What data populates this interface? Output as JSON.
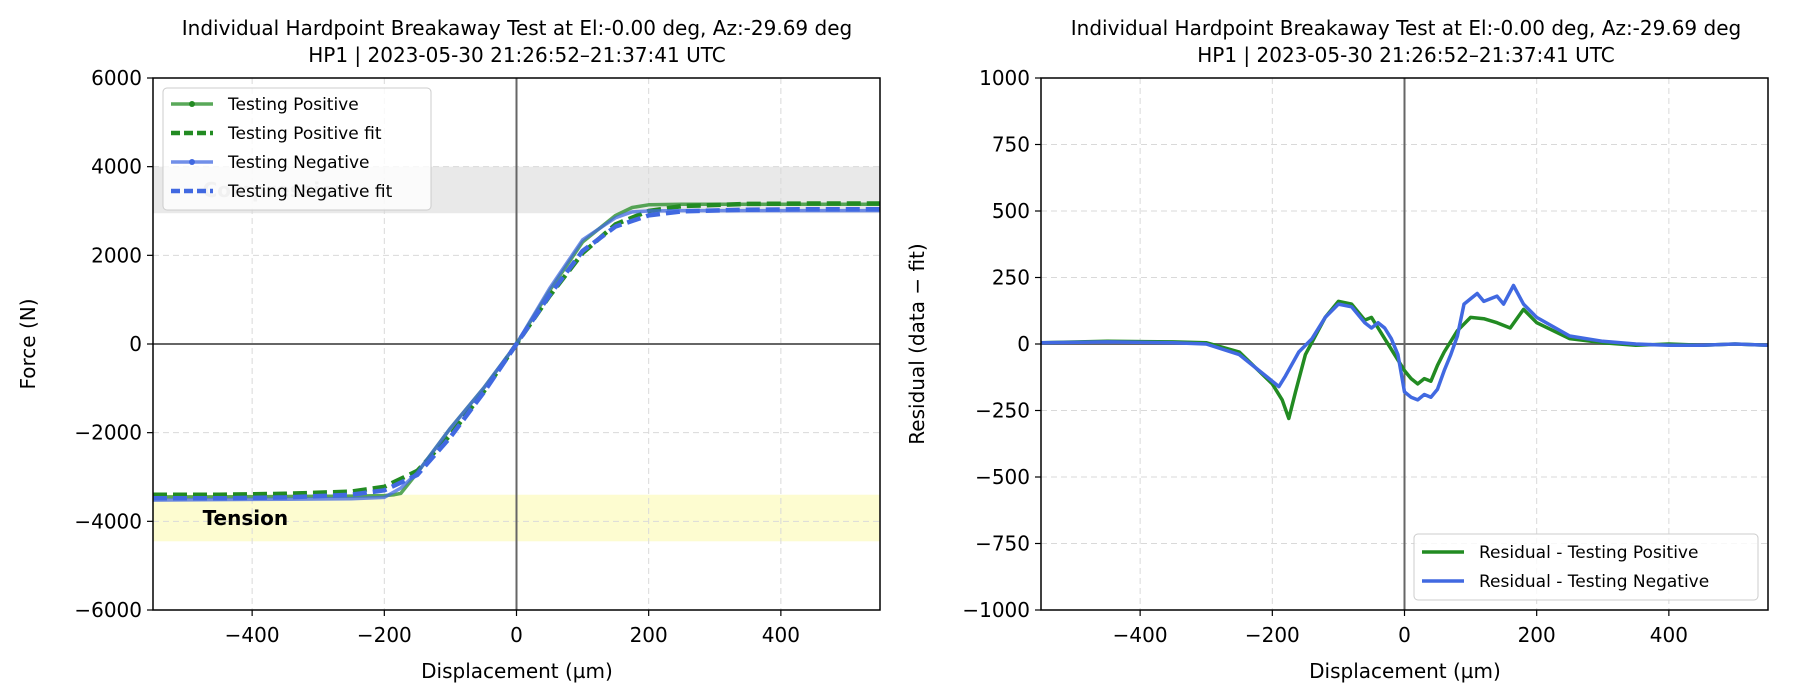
{
  "chart_data": [
    {
      "type": "line",
      "title": "Individual Hardpoint Breakaway Test at El:-0.00 deg, Az:-29.69 deg",
      "subtitle": "HP1 | 2023-05-30 21:26:52–21:37:41 UTC",
      "xlabel": "Displacement (µm)",
      "ylabel": "Force (N)",
      "xlim": [
        -550,
        550
      ],
      "ylim": [
        -6000,
        6000
      ],
      "xticks": [
        -400,
        -200,
        0,
        200,
        400
      ],
      "xtick_labels": [
        "−400",
        "−200",
        "0",
        "200",
        "400"
      ],
      "yticks": [
        -6000,
        -4000,
        -2000,
        0,
        2000,
        4000,
        6000
      ],
      "ytick_labels": [
        "−6000",
        "−4000",
        "−2000",
        "0",
        "2000",
        "4000",
        "6000"
      ],
      "grid": true,
      "legend_position": "upper-left",
      "bands": [
        {
          "label": "Compression",
          "y": [
            2950,
            4000
          ],
          "color": "#e9e9e9"
        },
        {
          "label": "Tension",
          "y": [
            -4450,
            -3400
          ],
          "color": "#fdfcd0"
        }
      ],
      "series": [
        {
          "name": "Testing Positive",
          "color": "#228b22",
          "style": "solid-marker",
          "x": [
            -550,
            -450,
            -350,
            -250,
            -200,
            -185,
            -175,
            -150,
            -100,
            -50,
            0,
            50,
            100,
            150,
            175,
            200,
            250,
            350,
            450,
            550
          ],
          "y": [
            -3450,
            -3450,
            -3440,
            -3430,
            -3420,
            -3400,
            -3370,
            -2900,
            -1900,
            -1000,
            0,
            1200,
            2300,
            2900,
            3080,
            3140,
            3150,
            3150,
            3150,
            3150
          ]
        },
        {
          "name": "Testing Positive fit",
          "color": "#228b22",
          "style": "dash",
          "x": [
            -550,
            -450,
            -350,
            -250,
            -200,
            -150,
            -100,
            -50,
            0,
            50,
            100,
            150,
            200,
            250,
            350,
            450,
            550
          ],
          "y": [
            -3400,
            -3400,
            -3380,
            -3330,
            -3220,
            -2860,
            -2050,
            -1080,
            0,
            1080,
            2050,
            2700,
            3000,
            3110,
            3160,
            3170,
            3170
          ]
        },
        {
          "name": "Testing Negative",
          "color": "#4169e1",
          "style": "solid-marker",
          "x": [
            -550,
            -450,
            -350,
            -250,
            -200,
            -175,
            -150,
            -100,
            -50,
            0,
            50,
            100,
            150,
            175,
            200,
            250,
            350,
            450,
            550
          ],
          "y": [
            -3520,
            -3510,
            -3500,
            -3490,
            -3460,
            -3250,
            -2900,
            -1900,
            -1000,
            0,
            1250,
            2350,
            2850,
            2980,
            3000,
            3010,
            3010,
            3010,
            3010
          ]
        },
        {
          "name": "Testing Negative fit",
          "color": "#4169e1",
          "style": "dash",
          "x": [
            -550,
            -450,
            -350,
            -250,
            -200,
            -150,
            -100,
            -50,
            0,
            50,
            100,
            150,
            200,
            250,
            350,
            450,
            550
          ],
          "y": [
            -3480,
            -3480,
            -3460,
            -3400,
            -3300,
            -2950,
            -2100,
            -1100,
            0,
            1100,
            2100,
            2650,
            2900,
            2990,
            3030,
            3040,
            3040
          ]
        }
      ]
    },
    {
      "type": "line",
      "title": "Individual Hardpoint Breakaway Test at El:-0.00 deg, Az:-29.69 deg",
      "subtitle": "HP1 | 2023-05-30 21:26:52–21:37:41 UTC",
      "xlabel": "Displacement (µm)",
      "ylabel": "Residual (data − fit)",
      "xlim": [
        -550,
        550
      ],
      "ylim": [
        -1000,
        1000
      ],
      "xticks": [
        -400,
        -200,
        0,
        200,
        400
      ],
      "xtick_labels": [
        "−400",
        "−200",
        "0",
        "200",
        "400"
      ],
      "yticks": [
        -1000,
        -750,
        -500,
        -250,
        0,
        250,
        500,
        750,
        1000
      ],
      "ytick_labels": [
        "−1000",
        "−750",
        "−500",
        "−250",
        "0",
        "250",
        "500",
        "750",
        "1000"
      ],
      "grid": true,
      "legend_position": "lower-right",
      "series": [
        {
          "name": "Residual - Testing Positive",
          "color": "#228b22",
          "x": [
            -550,
            -450,
            -350,
            -300,
            -250,
            -200,
            -185,
            -175,
            -165,
            -150,
            -120,
            -100,
            -80,
            -60,
            -50,
            -40,
            -30,
            -20,
            -10,
            0,
            10,
            20,
            30,
            40,
            50,
            60,
            80,
            100,
            120,
            140,
            160,
            180,
            200,
            250,
            300,
            350,
            400,
            450,
            500,
            550
          ],
          "y": [
            5,
            10,
            8,
            5,
            -30,
            -150,
            -210,
            -280,
            -180,
            -40,
            100,
            160,
            150,
            90,
            100,
            60,
            20,
            -20,
            -60,
            -100,
            -130,
            -150,
            -130,
            -140,
            -80,
            -30,
            50,
            100,
            95,
            80,
            60,
            130,
            80,
            20,
            5,
            -5,
            0,
            -5,
            0,
            -5
          ]
        },
        {
          "name": "Residual - Testing Negative",
          "color": "#4169e1",
          "x": [
            -550,
            -450,
            -350,
            -300,
            -250,
            -200,
            -190,
            -180,
            -160,
            -140,
            -120,
            -100,
            -80,
            -60,
            -50,
            -40,
            -30,
            -20,
            -10,
            0,
            10,
            20,
            30,
            40,
            50,
            60,
            70,
            80,
            90,
            100,
            110,
            120,
            140,
            150,
            165,
            180,
            200,
            250,
            300,
            350,
            400,
            450,
            500,
            550
          ],
          "y": [
            5,
            8,
            5,
            0,
            -40,
            -140,
            -160,
            -120,
            -30,
            20,
            100,
            150,
            140,
            80,
            60,
            80,
            60,
            20,
            -40,
            -180,
            -200,
            -210,
            -190,
            -200,
            -170,
            -100,
            -40,
            30,
            150,
            170,
            190,
            160,
            180,
            150,
            220,
            150,
            100,
            30,
            10,
            0,
            -5,
            -5,
            0,
            -5
          ]
        }
      ]
    }
  ]
}
